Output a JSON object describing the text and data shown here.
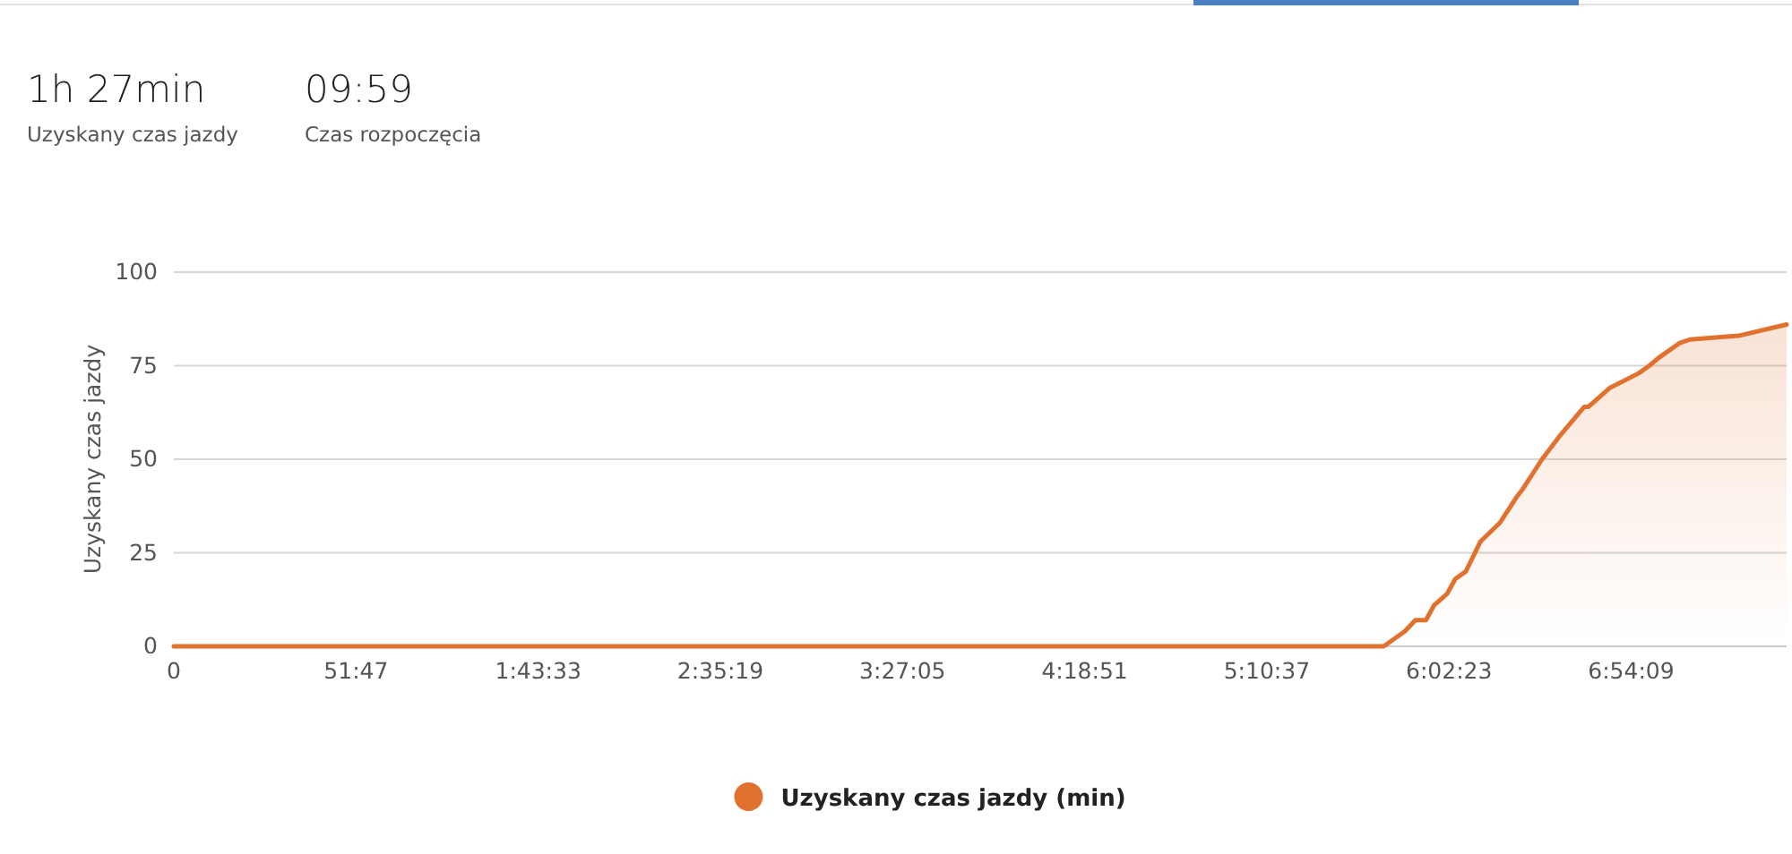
{
  "chart_data": {
    "type": "area",
    "annotations": [
      "1h 27min",
      "Uzyskany czas jazdy",
      "09:59",
      "Czas rozpoczęcia"
    ],
    "ylabel": "Uzyskany czas jazdy",
    "xlim": [
      0,
      27500
    ],
    "xticks": [
      0,
      {
        "value": 3107,
        "label": "51:47"
      },
      {
        "value": 6213,
        "label": "1:43:33"
      },
      {
        "value": 9319,
        "label": "2:35:19"
      },
      {
        "value": 12425,
        "label": "3:27:05"
      },
      {
        "value": 15531,
        "label": "4:18:51"
      },
      {
        "value": 18637,
        "label": "5:10:37"
      },
      {
        "value": 21743,
        "label": "6:02:23"
      },
      {
        "value": 24849,
        "label": "6:54:09"
      }
    ],
    "ylim": [
      0,
      100
    ],
    "yticks": [
      0,
      25,
      50,
      75,
      100
    ],
    "grid": "y",
    "legend": "bottom",
    "series": [
      {
        "name": "Uzyskany czas jazdy (min)",
        "color": "#e0712f",
        "x": [
          0,
          20630,
          20990,
          21170,
          21350,
          21490,
          21710,
          21850,
          22030,
          22280,
          22610,
          22900,
          23000,
          23330,
          23620,
          24050,
          24120,
          24480,
          24980,
          25160,
          25310,
          25670,
          25850,
          26680,
          27500
        ],
        "values": [
          0,
          0,
          4,
          7,
          7,
          11,
          14,
          18,
          20,
          28,
          33,
          40,
          42,
          50,
          56,
          64,
          64,
          69,
          73,
          75,
          77,
          81,
          82,
          83,
          86
        ]
      }
    ]
  }
}
